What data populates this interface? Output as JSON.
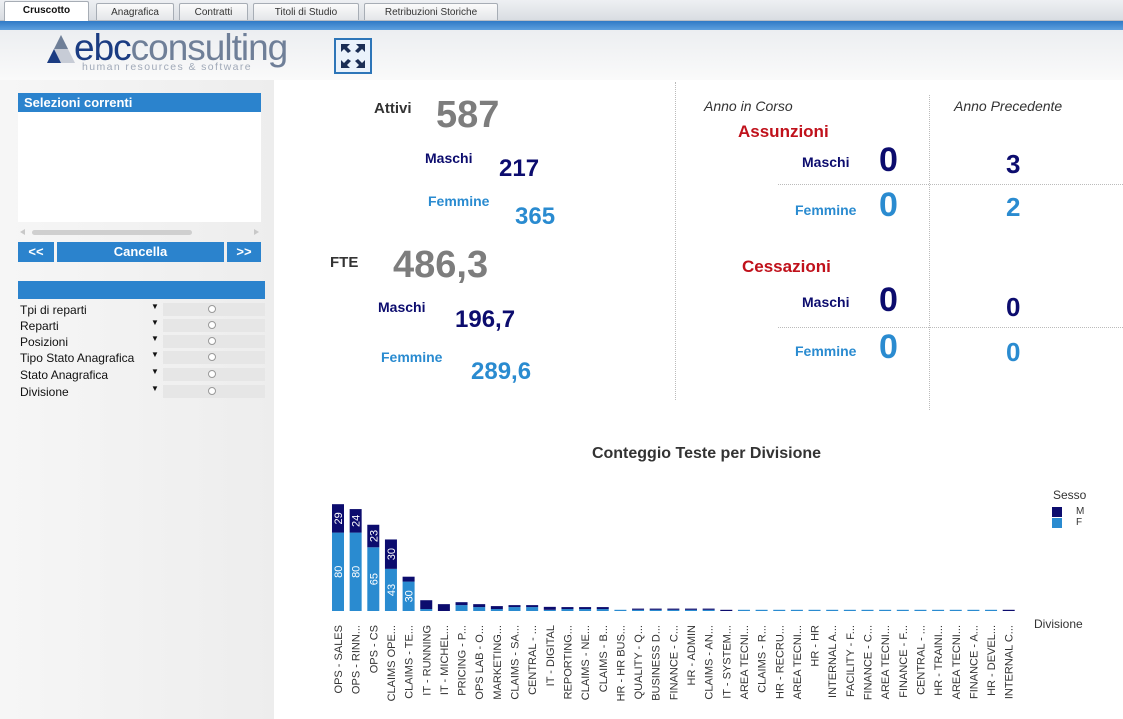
{
  "tabs": [
    {
      "label": "Cruscotto",
      "active": true
    },
    {
      "label": "Anagrafica",
      "active": false
    },
    {
      "label": "Contratti",
      "active": false
    },
    {
      "label": "Titoli di Studio",
      "active": false
    },
    {
      "label": "Retribuzioni Storiche",
      "active": false
    }
  ],
  "logo": {
    "word_left": "ebc",
    "word_right": "consulting",
    "tagline": "human resources & software"
  },
  "left": {
    "selections_title": "Selezioni correnti",
    "prev": "<<",
    "clear": "Cancella",
    "next": ">>",
    "filters": [
      "Tpi di reparti",
      "Reparti",
      "Posizioni",
      "Tipo Stato Anagrafica",
      "Stato Anagrafica",
      "Divisione"
    ]
  },
  "kpi": {
    "attivi_label": "Attivi",
    "attivi": "587",
    "maschi_label": "Maschi",
    "maschi": "217",
    "femmine_label": "Femmine",
    "femmine": "365",
    "fte_label": "FTE",
    "fte": "486,3",
    "fte_maschi_label": "Maschi",
    "fte_maschi": "196,7",
    "fte_femmine_label": "Femmine",
    "fte_femmine": "289,6"
  },
  "movements": {
    "current_label": "Anno in Corso",
    "previous_label": "Anno Precedente",
    "hires_label": "Assunzioni",
    "exits_label": "Cessazioni",
    "m_label": "Maschi",
    "f_label": "Femmine",
    "hires": {
      "m_cur": "0",
      "m_prev": "3",
      "f_cur": "0",
      "f_prev": "2"
    },
    "exits": {
      "m_cur": "0",
      "m_prev": "0",
      "f_cur": "0",
      "f_prev": "0"
    }
  },
  "colors": {
    "male": "#0c0c6e",
    "female": "#2a8bd0",
    "red": "#c0111b",
    "grey": "#7d7d7d"
  },
  "chart_data": {
    "type": "bar",
    "stacked": true,
    "title": "Conteggio Teste per Divisione",
    "xlabel": "Divisione",
    "legend_title": "Sesso",
    "legend_position": "right",
    "categories": [
      "OPS - SALES",
      "OPS - RINN...",
      "OPS - CS",
      "CLAIMS OPE...",
      "CLAIMS - TE...",
      "IT - RUNNING",
      "IT - MICHEL...",
      "PRICING - P...",
      "OPS LAB - O...",
      "MARKETING...",
      "CLAIMS - SA...",
      "CENTRAL - ...",
      "IT - DIGITAL",
      "REPORTING...",
      "CLAIMS - NE...",
      "CLAIMS - B...",
      "HR - HR BUS...",
      "QUALITY - Q...",
      "BUSINESS D...",
      "FINANCE - C...",
      "HR - ADMIN",
      "CLAIMS - AN...",
      "IT - SYSTEM...",
      "AREA TECNI...",
      "CLAIMS - R...",
      "HR - RECRU...",
      "AREA TECNI...",
      "HR - HR",
      "INTERNAL A...",
      "FACILITY - F...",
      "FINANCE - C...",
      "AREA TECNI...",
      "FINANCE - F...",
      "CENTRAL - ...",
      "HR - TRAINI...",
      "AREA TECNI...",
      "FINANCE - A...",
      "HR - DEVEL...",
      "INTERNAL C..."
    ],
    "series": [
      {
        "name": "M",
        "values": [
          29,
          24,
          23,
          30,
          5,
          9,
          7,
          3,
          3,
          3,
          2,
          2,
          3,
          2,
          2,
          2,
          0,
          1,
          1,
          1,
          1,
          1,
          1,
          0,
          0,
          0,
          0,
          0,
          0,
          0,
          0,
          0,
          0,
          0,
          0,
          0,
          0,
          0,
          0.5
        ]
      },
      {
        "name": "F",
        "values": [
          80,
          80,
          65,
          43,
          30,
          2,
          0,
          6,
          4,
          2,
          4,
          4,
          1,
          2,
          2,
          2,
          1,
          1,
          1,
          1,
          1,
          1,
          0,
          1,
          1,
          1,
          1,
          0.5,
          0.5,
          0.5,
          0.5,
          0.5,
          0.5,
          0.5,
          0.5,
          0.5,
          0.5,
          0.5,
          0
        ]
      }
    ],
    "data_labels_m": [
      "29",
      "24",
      "23",
      "30",
      "",
      "",
      "",
      "",
      "",
      "",
      "",
      "",
      "",
      "",
      "",
      "",
      "",
      "",
      "",
      "",
      "",
      "",
      "",
      "",
      "",
      "",
      "",
      "",
      "",
      "",
      "",
      "",
      "",
      "",
      "",
      "",
      "",
      "",
      ""
    ],
    "data_labels_f": [
      "80",
      "80",
      "65",
      "43",
      "30",
      "",
      "",
      "",
      "",
      "",
      "",
      "",
      "",
      "",
      "",
      "",
      "",
      "",
      "",
      "",
      "",
      "",
      "",
      "",
      "",
      "",
      "",
      "",
      "",
      "",
      "",
      "",
      "",
      "",
      "",
      "",
      "",
      "",
      ""
    ]
  }
}
